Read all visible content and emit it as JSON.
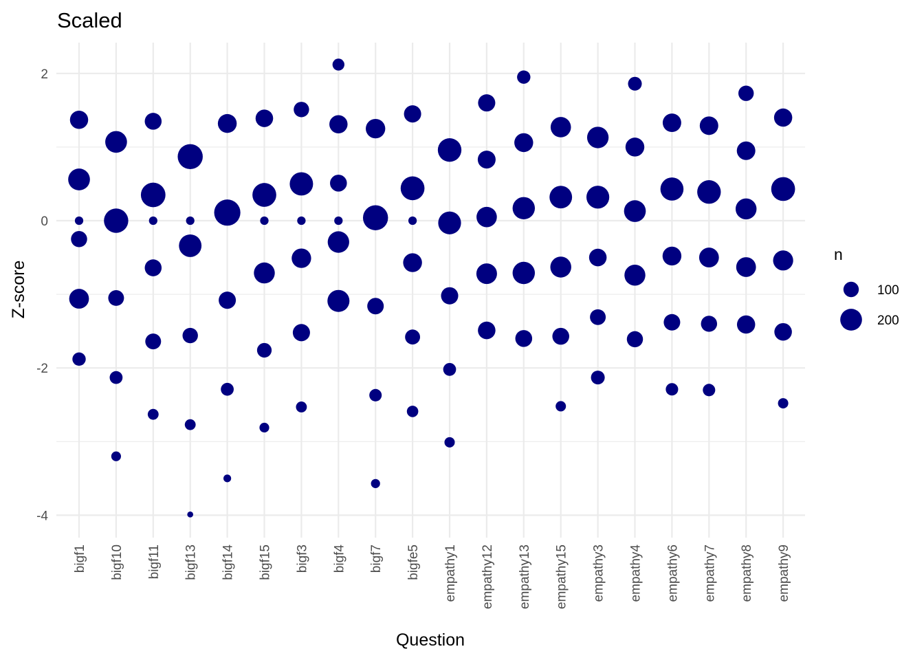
{
  "chart_data": {
    "type": "scatter",
    "title": "Scaled",
    "xlabel": "Question",
    "ylabel": "Z-score",
    "ylim": [
      -4.3,
      2.5
    ],
    "yticks": [
      -4,
      -2,
      0,
      2
    ],
    "grid": true,
    "point_color": "#000080",
    "grid_color": "#ebebeb",
    "categories": [
      "bigf1",
      "bigf10",
      "bigf11",
      "bigf13",
      "bigf14",
      "bigf15",
      "bigf3",
      "bigf4",
      "bigf7",
      "bigfe5",
      "empathy1",
      "empathy12",
      "empathy13",
      "empathy15",
      "empathy3",
      "empathy4",
      "empathy6",
      "empathy7",
      "empathy8",
      "empathy9"
    ],
    "points": [
      {
        "q": "bigf1",
        "y": 1.37,
        "n": 140
      },
      {
        "q": "bigf1",
        "y": 0.56,
        "n": 200
      },
      {
        "q": "bigf1",
        "y": 0.0,
        "n": 30
      },
      {
        "q": "bigf1",
        "y": -0.25,
        "n": 110
      },
      {
        "q": "bigf1",
        "y": -1.06,
        "n": 165
      },
      {
        "q": "bigf1",
        "y": -1.88,
        "n": 75
      },
      {
        "q": "bigf10",
        "y": 1.07,
        "n": 200
      },
      {
        "q": "bigf10",
        "y": 0.0,
        "n": 250
      },
      {
        "q": "bigf10",
        "y": -1.05,
        "n": 105
      },
      {
        "q": "bigf10",
        "y": -2.13,
        "n": 70
      },
      {
        "q": "bigf10",
        "y": -3.2,
        "n": 40
      },
      {
        "q": "bigf11",
        "y": 1.35,
        "n": 120
      },
      {
        "q": "bigf11",
        "y": 0.35,
        "n": 255
      },
      {
        "q": "bigf11",
        "y": 0.0,
        "n": 30
      },
      {
        "q": "bigf11",
        "y": -0.64,
        "n": 120
      },
      {
        "q": "bigf11",
        "y": -1.64,
        "n": 105
      },
      {
        "q": "bigf11",
        "y": -2.63,
        "n": 50
      },
      {
        "q": "bigf13",
        "y": 0.87,
        "n": 265
      },
      {
        "q": "bigf13",
        "y": 0.0,
        "n": 30
      },
      {
        "q": "bigf13",
        "y": -0.34,
        "n": 215
      },
      {
        "q": "bigf13",
        "y": -1.56,
        "n": 100
      },
      {
        "q": "bigf13",
        "y": -2.77,
        "n": 50
      },
      {
        "q": "bigf13",
        "y": -3.99,
        "n": 15
      },
      {
        "q": "bigf14",
        "y": 1.32,
        "n": 150
      },
      {
        "q": "bigf14",
        "y": 0.11,
        "n": 290
      },
      {
        "q": "bigf14",
        "y": -1.08,
        "n": 125
      },
      {
        "q": "bigf14",
        "y": -2.29,
        "n": 70
      },
      {
        "q": "bigf14",
        "y": -3.5,
        "n": 25
      },
      {
        "q": "bigf15",
        "y": 1.39,
        "n": 130
      },
      {
        "q": "bigf15",
        "y": 0.35,
        "n": 240
      },
      {
        "q": "bigf15",
        "y": 0.0,
        "n": 30
      },
      {
        "q": "bigf15",
        "y": -0.71,
        "n": 185
      },
      {
        "q": "bigf15",
        "y": -1.76,
        "n": 90
      },
      {
        "q": "bigf15",
        "y": -2.81,
        "n": 40
      },
      {
        "q": "bigf3",
        "y": 1.51,
        "n": 100
      },
      {
        "q": "bigf3",
        "y": 0.5,
        "n": 230
      },
      {
        "q": "bigf3",
        "y": 0.0,
        "n": 30
      },
      {
        "q": "bigf3",
        "y": -0.51,
        "n": 160
      },
      {
        "q": "bigf3",
        "y": -1.52,
        "n": 125
      },
      {
        "q": "bigf3",
        "y": -2.53,
        "n": 50
      },
      {
        "q": "bigf4",
        "y": 2.12,
        "n": 60
      },
      {
        "q": "bigf4",
        "y": 1.31,
        "n": 140
      },
      {
        "q": "bigf4",
        "y": 0.51,
        "n": 120
      },
      {
        "q": "bigf4",
        "y": 0.0,
        "n": 30
      },
      {
        "q": "bigf4",
        "y": -0.29,
        "n": 195
      },
      {
        "q": "bigf4",
        "y": -1.09,
        "n": 205
      },
      {
        "q": "bigf7",
        "y": 1.25,
        "n": 160
      },
      {
        "q": "bigf7",
        "y": 0.04,
        "n": 265
      },
      {
        "q": "bigf7",
        "y": -1.16,
        "n": 115
      },
      {
        "q": "bigf7",
        "y": -2.37,
        "n": 65
      },
      {
        "q": "bigf7",
        "y": -3.57,
        "n": 35
      },
      {
        "q": "bigfe5",
        "y": 1.45,
        "n": 125
      },
      {
        "q": "bigfe5",
        "y": 0.44,
        "n": 240
      },
      {
        "q": "bigfe5",
        "y": 0.0,
        "n": 30
      },
      {
        "q": "bigfe5",
        "y": -0.57,
        "n": 150
      },
      {
        "q": "bigfe5",
        "y": -1.58,
        "n": 95
      },
      {
        "q": "bigfe5",
        "y": -2.59,
        "n": 55
      },
      {
        "q": "empathy1",
        "y": 0.96,
        "n": 235
      },
      {
        "q": "empathy1",
        "y": -0.03,
        "n": 220
      },
      {
        "q": "empathy1",
        "y": -1.02,
        "n": 125
      },
      {
        "q": "empathy1",
        "y": -2.02,
        "n": 70
      },
      {
        "q": "empathy1",
        "y": -3.01,
        "n": 45
      },
      {
        "q": "empathy12",
        "y": 1.6,
        "n": 125
      },
      {
        "q": "empathy12",
        "y": 0.83,
        "n": 135
      },
      {
        "q": "empathy12",
        "y": 0.05,
        "n": 175
      },
      {
        "q": "empathy12",
        "y": -0.72,
        "n": 180
      },
      {
        "q": "empathy12",
        "y": -1.49,
        "n": 130
      },
      {
        "q": "empathy13",
        "y": 1.95,
        "n": 75
      },
      {
        "q": "empathy13",
        "y": 1.06,
        "n": 150
      },
      {
        "q": "empathy13",
        "y": 0.17,
        "n": 210
      },
      {
        "q": "empathy13",
        "y": -0.71,
        "n": 210
      },
      {
        "q": "empathy13",
        "y": -1.6,
        "n": 120
      },
      {
        "q": "empathy15",
        "y": 1.27,
        "n": 175
      },
      {
        "q": "empathy15",
        "y": 0.32,
        "n": 215
      },
      {
        "q": "empathy15",
        "y": -0.63,
        "n": 185
      },
      {
        "q": "empathy15",
        "y": -1.57,
        "n": 120
      },
      {
        "q": "empathy15",
        "y": -2.52,
        "n": 45
      },
      {
        "q": "empathy3",
        "y": 1.13,
        "n": 195
      },
      {
        "q": "empathy3",
        "y": 0.32,
        "n": 220
      },
      {
        "q": "empathy3",
        "y": -0.5,
        "n": 130
      },
      {
        "q": "empathy3",
        "y": -1.31,
        "n": 105
      },
      {
        "q": "empathy3",
        "y": -2.13,
        "n": 80
      },
      {
        "q": "empathy4",
        "y": 1.86,
        "n": 80
      },
      {
        "q": "empathy4",
        "y": 1.0,
        "n": 150
      },
      {
        "q": "empathy4",
        "y": 0.13,
        "n": 200
      },
      {
        "q": "empathy4",
        "y": -0.74,
        "n": 185
      },
      {
        "q": "empathy4",
        "y": -1.61,
        "n": 110
      },
      {
        "q": "empathy6",
        "y": 1.33,
        "n": 145
      },
      {
        "q": "empathy6",
        "y": 0.43,
        "n": 225
      },
      {
        "q": "empathy6",
        "y": -0.48,
        "n": 150
      },
      {
        "q": "empathy6",
        "y": -1.38,
        "n": 115
      },
      {
        "q": "empathy6",
        "y": -2.29,
        "n": 65
      },
      {
        "q": "empathy7",
        "y": 1.29,
        "n": 145
      },
      {
        "q": "empathy7",
        "y": 0.39,
        "n": 235
      },
      {
        "q": "empathy7",
        "y": -0.5,
        "n": 165
      },
      {
        "q": "empathy7",
        "y": -1.4,
        "n": 110
      },
      {
        "q": "empathy7",
        "y": -2.3,
        "n": 65
      },
      {
        "q": "empathy8",
        "y": 1.73,
        "n": 100
      },
      {
        "q": "empathy8",
        "y": 0.95,
        "n": 145
      },
      {
        "q": "empathy8",
        "y": 0.16,
        "n": 185
      },
      {
        "q": "empathy8",
        "y": -0.63,
        "n": 165
      },
      {
        "q": "empathy8",
        "y": -1.41,
        "n": 140
      },
      {
        "q": "empathy9",
        "y": 1.4,
        "n": 140
      },
      {
        "q": "empathy9",
        "y": 0.43,
        "n": 240
      },
      {
        "q": "empathy9",
        "y": -0.54,
        "n": 170
      },
      {
        "q": "empathy9",
        "y": -1.51,
        "n": 130
      },
      {
        "q": "empathy9",
        "y": -2.48,
        "n": 45
      }
    ],
    "legend": {
      "title": "n",
      "placement": "right",
      "entries": [
        {
          "label": "100",
          "n": 100
        },
        {
          "label": "200",
          "n": 200
        }
      ]
    }
  }
}
